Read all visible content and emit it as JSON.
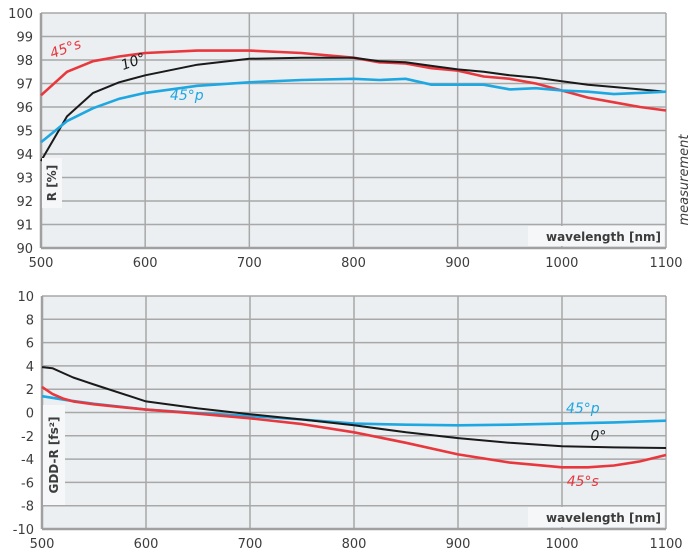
{
  "chart_data": [
    {
      "type": "line",
      "title": "",
      "xlabel": "wavelength [nm]",
      "ylabel": "R [%]",
      "side_note": "measurement",
      "xlim": [
        500,
        1100
      ],
      "ylim": [
        90,
        100
      ],
      "x_ticks": [
        "500",
        "600",
        "700",
        "800",
        "900",
        "1000",
        "1100"
      ],
      "y_ticks": [
        "90",
        "91",
        "92",
        "93",
        "94",
        "95",
        "96",
        "97",
        "98",
        "99",
        "100"
      ],
      "grid": true,
      "series": [
        {
          "name": "45°s",
          "color": "#e8383d",
          "x": [
            500,
            525,
            550,
            575,
            600,
            650,
            700,
            750,
            800,
            825,
            850,
            875,
            900,
            925,
            950,
            975,
            1000,
            1025,
            1050,
            1075,
            1100
          ],
          "y": [
            96.5,
            97.5,
            97.95,
            98.15,
            98.3,
            98.4,
            98.4,
            98.3,
            98.1,
            97.9,
            97.85,
            97.65,
            97.55,
            97.3,
            97.2,
            97.0,
            96.7,
            96.4,
            96.2,
            96.0,
            95.85
          ]
        },
        {
          "name": "10°",
          "color": "#1a1a1a",
          "x": [
            500,
            525,
            550,
            575,
            600,
            650,
            700,
            750,
            800,
            825,
            850,
            875,
            900,
            925,
            950,
            975,
            1000,
            1025,
            1050,
            1075,
            1100
          ],
          "y": [
            93.7,
            95.6,
            96.6,
            97.05,
            97.35,
            97.8,
            98.05,
            98.1,
            98.1,
            97.95,
            97.9,
            97.75,
            97.6,
            97.5,
            97.35,
            97.25,
            97.1,
            96.95,
            96.85,
            96.75,
            96.65
          ]
        },
        {
          "name": "45°p",
          "color": "#1ea7e1",
          "x": [
            500,
            525,
            550,
            575,
            600,
            650,
            700,
            750,
            800,
            825,
            850,
            875,
            900,
            925,
            950,
            975,
            1000,
            1025,
            1050,
            1075,
            1100
          ],
          "y": [
            94.5,
            95.4,
            95.95,
            96.35,
            96.6,
            96.9,
            97.05,
            97.15,
            97.2,
            97.15,
            97.2,
            96.95,
            96.95,
            96.95,
            96.75,
            96.8,
            96.7,
            96.65,
            96.55,
            96.6,
            96.65
          ]
        }
      ],
      "annotations": [
        {
          "text": "45°s",
          "x": 525,
          "y": 98.3,
          "color": "#e8383d",
          "rotate": -20
        },
        {
          "text": "10°",
          "x": 590,
          "y": 97.75,
          "color": "#1a1a1a",
          "rotate": -20
        },
        {
          "text": "45°p",
          "x": 640,
          "y": 96.3,
          "color": "#1ea7e1",
          "rotate": 0
        }
      ]
    },
    {
      "type": "line",
      "title": "",
      "xlabel": "wavelength [nm]",
      "ylabel": "GDD-R [fs²]",
      "xlim": [
        500,
        1100
      ],
      "ylim": [
        -10,
        10
      ],
      "x_ticks": [
        "500",
        "600",
        "700",
        "800",
        "900",
        "1000",
        "1100"
      ],
      "y_ticks": [
        "-10",
        "-8",
        "-6",
        "-4",
        "-2",
        "0",
        "2",
        "4",
        "6",
        "8",
        "10"
      ],
      "grid": true,
      "series": [
        {
          "name": "45°p",
          "color": "#1ea7e1",
          "x": [
            500,
            525,
            550,
            600,
            650,
            700,
            750,
            800,
            850,
            900,
            950,
            1000,
            1050,
            1100
          ],
          "y": [
            1.4,
            1.05,
            0.75,
            0.25,
            -0.05,
            -0.3,
            -0.6,
            -0.95,
            -1.05,
            -1.1,
            -1.05,
            -0.95,
            -0.85,
            -0.7
          ]
        },
        {
          "name": "0°",
          "color": "#1a1a1a",
          "x": [
            500,
            510,
            520,
            530,
            550,
            600,
            650,
            700,
            750,
            800,
            850,
            900,
            950,
            1000,
            1050,
            1100
          ],
          "y": [
            3.9,
            3.8,
            3.4,
            3.0,
            2.4,
            0.95,
            0.35,
            -0.15,
            -0.6,
            -1.1,
            -1.7,
            -2.2,
            -2.6,
            -2.9,
            -3.0,
            -3.05
          ]
        },
        {
          "name": "45°s",
          "color": "#e8383d",
          "x": [
            500,
            510,
            520,
            530,
            550,
            600,
            650,
            700,
            750,
            800,
            850,
            900,
            950,
            1000,
            1025,
            1050,
            1075,
            1100
          ],
          "y": [
            2.2,
            1.6,
            1.2,
            0.95,
            0.7,
            0.25,
            -0.1,
            -0.5,
            -1.0,
            -1.7,
            -2.6,
            -3.6,
            -4.3,
            -4.7,
            -4.7,
            -4.55,
            -4.2,
            -3.65
          ]
        }
      ],
      "annotations": [
        {
          "text": "45°p",
          "x": 1020,
          "y": -0.05,
          "color": "#1ea7e1",
          "rotate": 0
        },
        {
          "text": "0°",
          "x": 1035,
          "y": -2.4,
          "color": "#1a1a1a",
          "rotate": 0
        },
        {
          "text": "45°s",
          "x": 1020,
          "y": -6.3,
          "color": "#e8383d",
          "rotate": 0
        }
      ]
    }
  ]
}
